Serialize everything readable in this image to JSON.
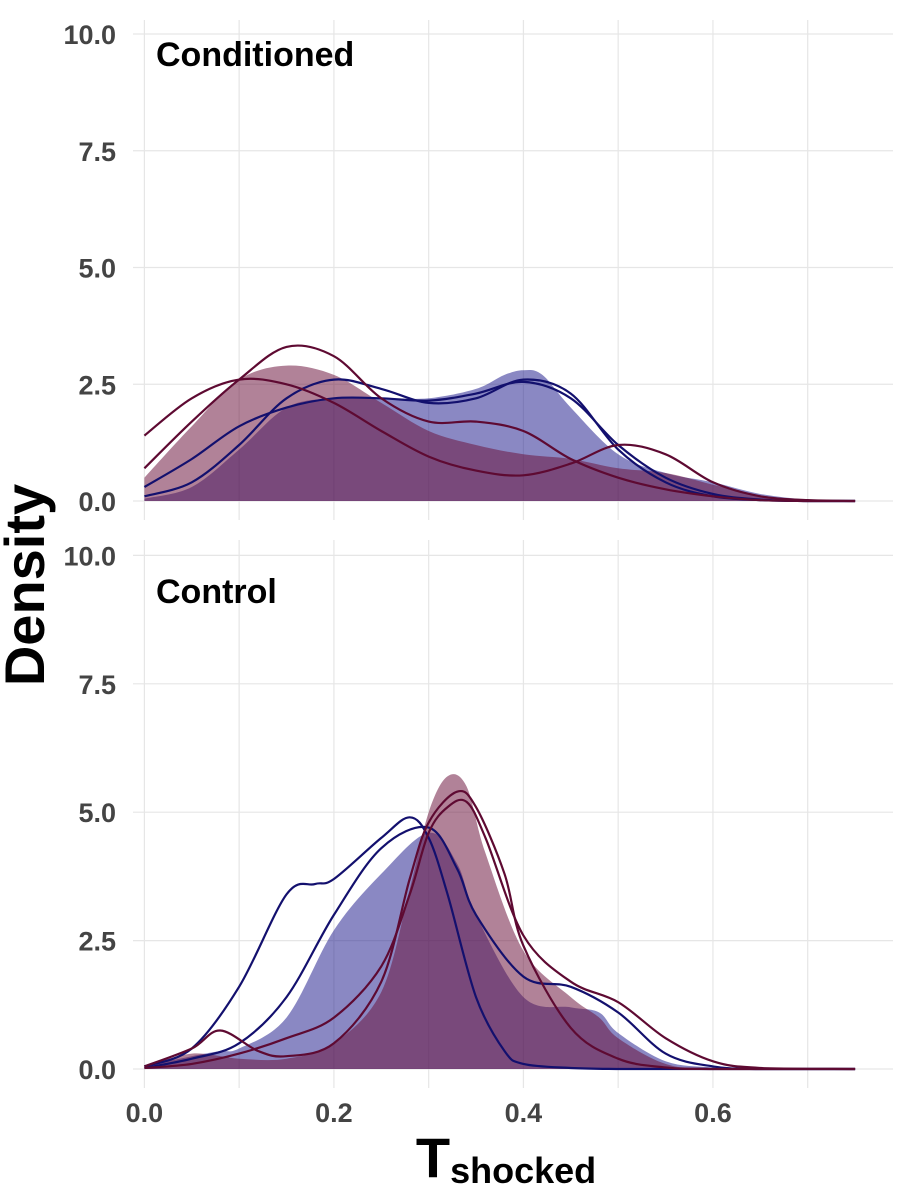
{
  "chart_data": {
    "type": "area",
    "ylabel": "Density",
    "xlabel_main": "T",
    "xlabel_sub": "shocked",
    "x_ticks": [
      "0.0",
      "0.2",
      "0.4",
      "0.6"
    ],
    "x_tick_values": [
      0,
      0.2,
      0.4,
      0.6
    ],
    "y_ticks": [
      "0.0",
      "2.5",
      "5.0",
      "7.5",
      "10.0"
    ],
    "y_tick_values": [
      0,
      2.5,
      5,
      7.5,
      10
    ],
    "xlim": [
      -0.012,
      0.79
    ],
    "ylim": [
      0,
      10.3
    ],
    "grid": true,
    "colors": {
      "fill_blue": "#1f1a8c",
      "fill_maroon": "#6a0f3a",
      "line_blue": "#13106e",
      "line_maroon": "#5e0a32"
    },
    "panels": [
      {
        "title": "Conditioned",
        "filled": [
          {
            "color": "fill_blue",
            "x": [
              0,
              0.05,
              0.1,
              0.15,
              0.2,
              0.25,
              0.3,
              0.35,
              0.38,
              0.4,
              0.42,
              0.45,
              0.5,
              0.55,
              0.6,
              0.65,
              0.7,
              0.75
            ],
            "y": [
              0.05,
              0.3,
              1.1,
              2.0,
              2.2,
              2.2,
              2.2,
              2.4,
              2.7,
              2.8,
              2.7,
              2.0,
              1.0,
              0.6,
              0.4,
              0.15,
              0.03,
              0
            ]
          },
          {
            "color": "fill_maroon",
            "x": [
              0,
              0.05,
              0.1,
              0.15,
              0.2,
              0.25,
              0.3,
              0.35,
              0.4,
              0.45,
              0.5,
              0.55,
              0.6,
              0.65,
              0.7,
              0.75
            ],
            "y": [
              0.5,
              1.6,
              2.6,
              2.9,
              2.7,
              2.1,
              1.5,
              1.2,
              1.0,
              0.9,
              0.7,
              0.6,
              0.35,
              0.12,
              0.03,
              0
            ]
          }
        ],
        "lines": [
          {
            "color": "line_blue",
            "x": [
              0,
              0.05,
              0.1,
              0.15,
              0.2,
              0.25,
              0.3,
              0.35,
              0.4,
              0.45,
              0.5,
              0.55,
              0.6,
              0.65,
              0.7,
              0.75
            ],
            "y": [
              0.1,
              0.4,
              1.2,
              2.2,
              2.6,
              2.4,
              2.1,
              2.2,
              2.6,
              2.3,
              1.1,
              0.4,
              0.1,
              0.02,
              0,
              0
            ]
          },
          {
            "color": "line_blue",
            "x": [
              0,
              0.05,
              0.1,
              0.15,
              0.2,
              0.25,
              0.3,
              0.35,
              0.4,
              0.45,
              0.5,
              0.55,
              0.6,
              0.65,
              0.7,
              0.75
            ],
            "y": [
              0.3,
              0.9,
              1.6,
              2.0,
              2.2,
              2.2,
              2.15,
              2.3,
              2.55,
              2.2,
              1.2,
              0.5,
              0.15,
              0.03,
              0,
              0
            ]
          },
          {
            "color": "line_maroon",
            "x": [
              0,
              0.05,
              0.1,
              0.15,
              0.2,
              0.25,
              0.3,
              0.35,
              0.4,
              0.45,
              0.5,
              0.55,
              0.6,
              0.65,
              0.7,
              0.75
            ],
            "y": [
              0.7,
              1.7,
              2.6,
              3.3,
              3.1,
              2.2,
              1.7,
              1.7,
              1.5,
              0.9,
              0.5,
              0.25,
              0.1,
              0.02,
              0,
              0
            ]
          },
          {
            "color": "line_maroon",
            "x": [
              0,
              0.05,
              0.1,
              0.15,
              0.2,
              0.25,
              0.3,
              0.35,
              0.4,
              0.45,
              0.5,
              0.55,
              0.6,
              0.65,
              0.7,
              0.75
            ],
            "y": [
              1.4,
              2.2,
              2.6,
              2.5,
              2.1,
              1.5,
              0.95,
              0.65,
              0.55,
              0.8,
              1.2,
              1.0,
              0.4,
              0.1,
              0.02,
              0
            ]
          }
        ]
      },
      {
        "title": "Control",
        "filled": [
          {
            "color": "fill_blue",
            "x": [
              0,
              0.05,
              0.08,
              0.1,
              0.15,
              0.2,
              0.25,
              0.3,
              0.33,
              0.35,
              0.4,
              0.45,
              0.48,
              0.5,
              0.55,
              0.6,
              0.65,
              0.75
            ],
            "y": [
              0.05,
              0.25,
              0.35,
              0.4,
              1.0,
              2.7,
              3.8,
              4.6,
              4.0,
              3.0,
              1.4,
              1.2,
              1.1,
              0.7,
              0.15,
              0.03,
              0,
              0
            ]
          },
          {
            "color": "fill_maroon",
            "x": [
              0,
              0.05,
              0.1,
              0.15,
              0.2,
              0.25,
              0.28,
              0.3,
              0.32,
              0.34,
              0.36,
              0.4,
              0.45,
              0.48,
              0.5,
              0.55,
              0.6,
              0.75
            ],
            "y": [
              0.05,
              0.3,
              0.2,
              0.2,
              0.5,
              1.5,
              3.5,
              5.0,
              5.7,
              5.5,
              4.2,
              2.3,
              1.4,
              1.0,
              0.6,
              0.1,
              0.02,
              0
            ]
          }
        ],
        "lines": [
          {
            "color": "line_blue",
            "x": [
              0,
              0.05,
              0.1,
              0.15,
              0.18,
              0.2,
              0.25,
              0.28,
              0.3,
              0.32,
              0.35,
              0.38,
              0.4,
              0.45,
              0.5,
              0.55,
              0.6,
              0.65,
              0.75
            ],
            "y": [
              0.05,
              0.4,
              1.6,
              3.4,
              3.6,
              3.7,
              4.5,
              4.9,
              4.5,
              3.4,
              1.4,
              0.35,
              0.1,
              0.02,
              0,
              0,
              0,
              0,
              0
            ]
          },
          {
            "color": "line_blue",
            "x": [
              0,
              0.05,
              0.1,
              0.15,
              0.2,
              0.25,
              0.3,
              0.33,
              0.35,
              0.4,
              0.45,
              0.5,
              0.55,
              0.6,
              0.65,
              0.75
            ],
            "y": [
              0.02,
              0.2,
              0.5,
              1.4,
              3.0,
              4.3,
              4.7,
              3.9,
              3.0,
              1.8,
              1.6,
              1.1,
              0.3,
              0.05,
              0,
              0
            ]
          },
          {
            "color": "line_maroon",
            "x": [
              0,
              0.05,
              0.08,
              0.12,
              0.15,
              0.2,
              0.25,
              0.28,
              0.3,
              0.33,
              0.35,
              0.38,
              0.4,
              0.45,
              0.5,
              0.55,
              0.6,
              0.75
            ],
            "y": [
              0.05,
              0.4,
              0.75,
              0.35,
              0.25,
              0.5,
              1.7,
              3.7,
              4.8,
              5.4,
              5.1,
              3.8,
              2.4,
              0.8,
              0.2,
              0.03,
              0,
              0
            ]
          },
          {
            "color": "line_maroon",
            "x": [
              0,
              0.05,
              0.1,
              0.15,
              0.2,
              0.25,
              0.28,
              0.3,
              0.32,
              0.34,
              0.36,
              0.4,
              0.45,
              0.5,
              0.55,
              0.6,
              0.65,
              0.75
            ],
            "y": [
              0.02,
              0.1,
              0.3,
              0.6,
              1.0,
              2.0,
              3.4,
              4.6,
              5.1,
              5.2,
              4.5,
              2.6,
              1.7,
              1.3,
              0.6,
              0.15,
              0.02,
              0
            ]
          }
        ]
      }
    ]
  }
}
